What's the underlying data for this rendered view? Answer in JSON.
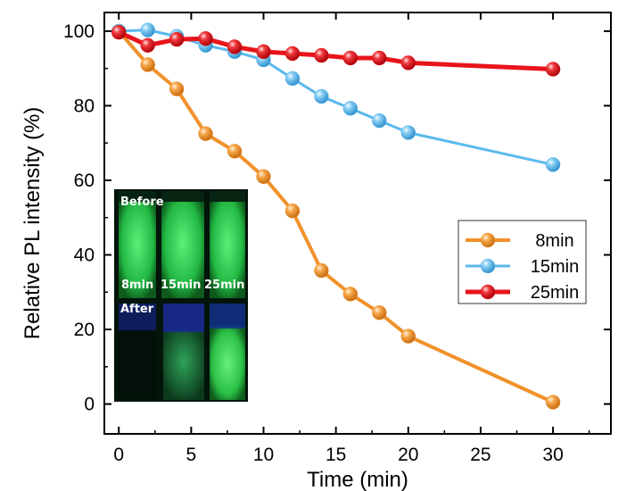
{
  "chart_data": {
    "type": "line",
    "title": "",
    "xlabel": "Time (min)",
    "ylabel": "Relative PL intensity (%)",
    "xlim": [
      -1,
      34
    ],
    "ylim": [
      -8,
      105
    ],
    "xticks": [
      0,
      5,
      10,
      15,
      20,
      25,
      30
    ],
    "yticks": [
      0,
      20,
      40,
      60,
      80,
      100
    ],
    "grid": false,
    "legend_position": "center-right",
    "series": [
      {
        "name": "8min",
        "color": "#f0922b",
        "x": [
          0,
          2,
          4,
          6,
          8,
          10,
          12,
          14,
          16,
          18,
          20,
          30
        ],
        "y": [
          100,
          91,
          84.5,
          72.5,
          67.8,
          61,
          51.8,
          35.8,
          29.5,
          24.5,
          18.2,
          0.5
        ]
      },
      {
        "name": "15min",
        "color": "#5ab9ee",
        "x": [
          0,
          2,
          4,
          6,
          8,
          10,
          12,
          14,
          16,
          18,
          20,
          30
        ],
        "y": [
          100,
          100.3,
          98.6,
          96.2,
          94.5,
          92.3,
          87.3,
          82.5,
          79.3,
          76,
          72.8,
          64.2
        ]
      },
      {
        "name": "25min",
        "color": "#e8141b",
        "x": [
          0,
          2,
          4,
          6,
          8,
          10,
          12,
          14,
          16,
          18,
          20,
          30
        ],
        "y": [
          99.7,
          96.2,
          97.8,
          98,
          95.8,
          94.5,
          94,
          93.5,
          92.8,
          92.8,
          91.5,
          89.8
        ]
      }
    ],
    "inset": {
      "top_label": "Before",
      "bottom_label": "After",
      "sample_labels": [
        "8min",
        "15min",
        "25min"
      ]
    }
  }
}
